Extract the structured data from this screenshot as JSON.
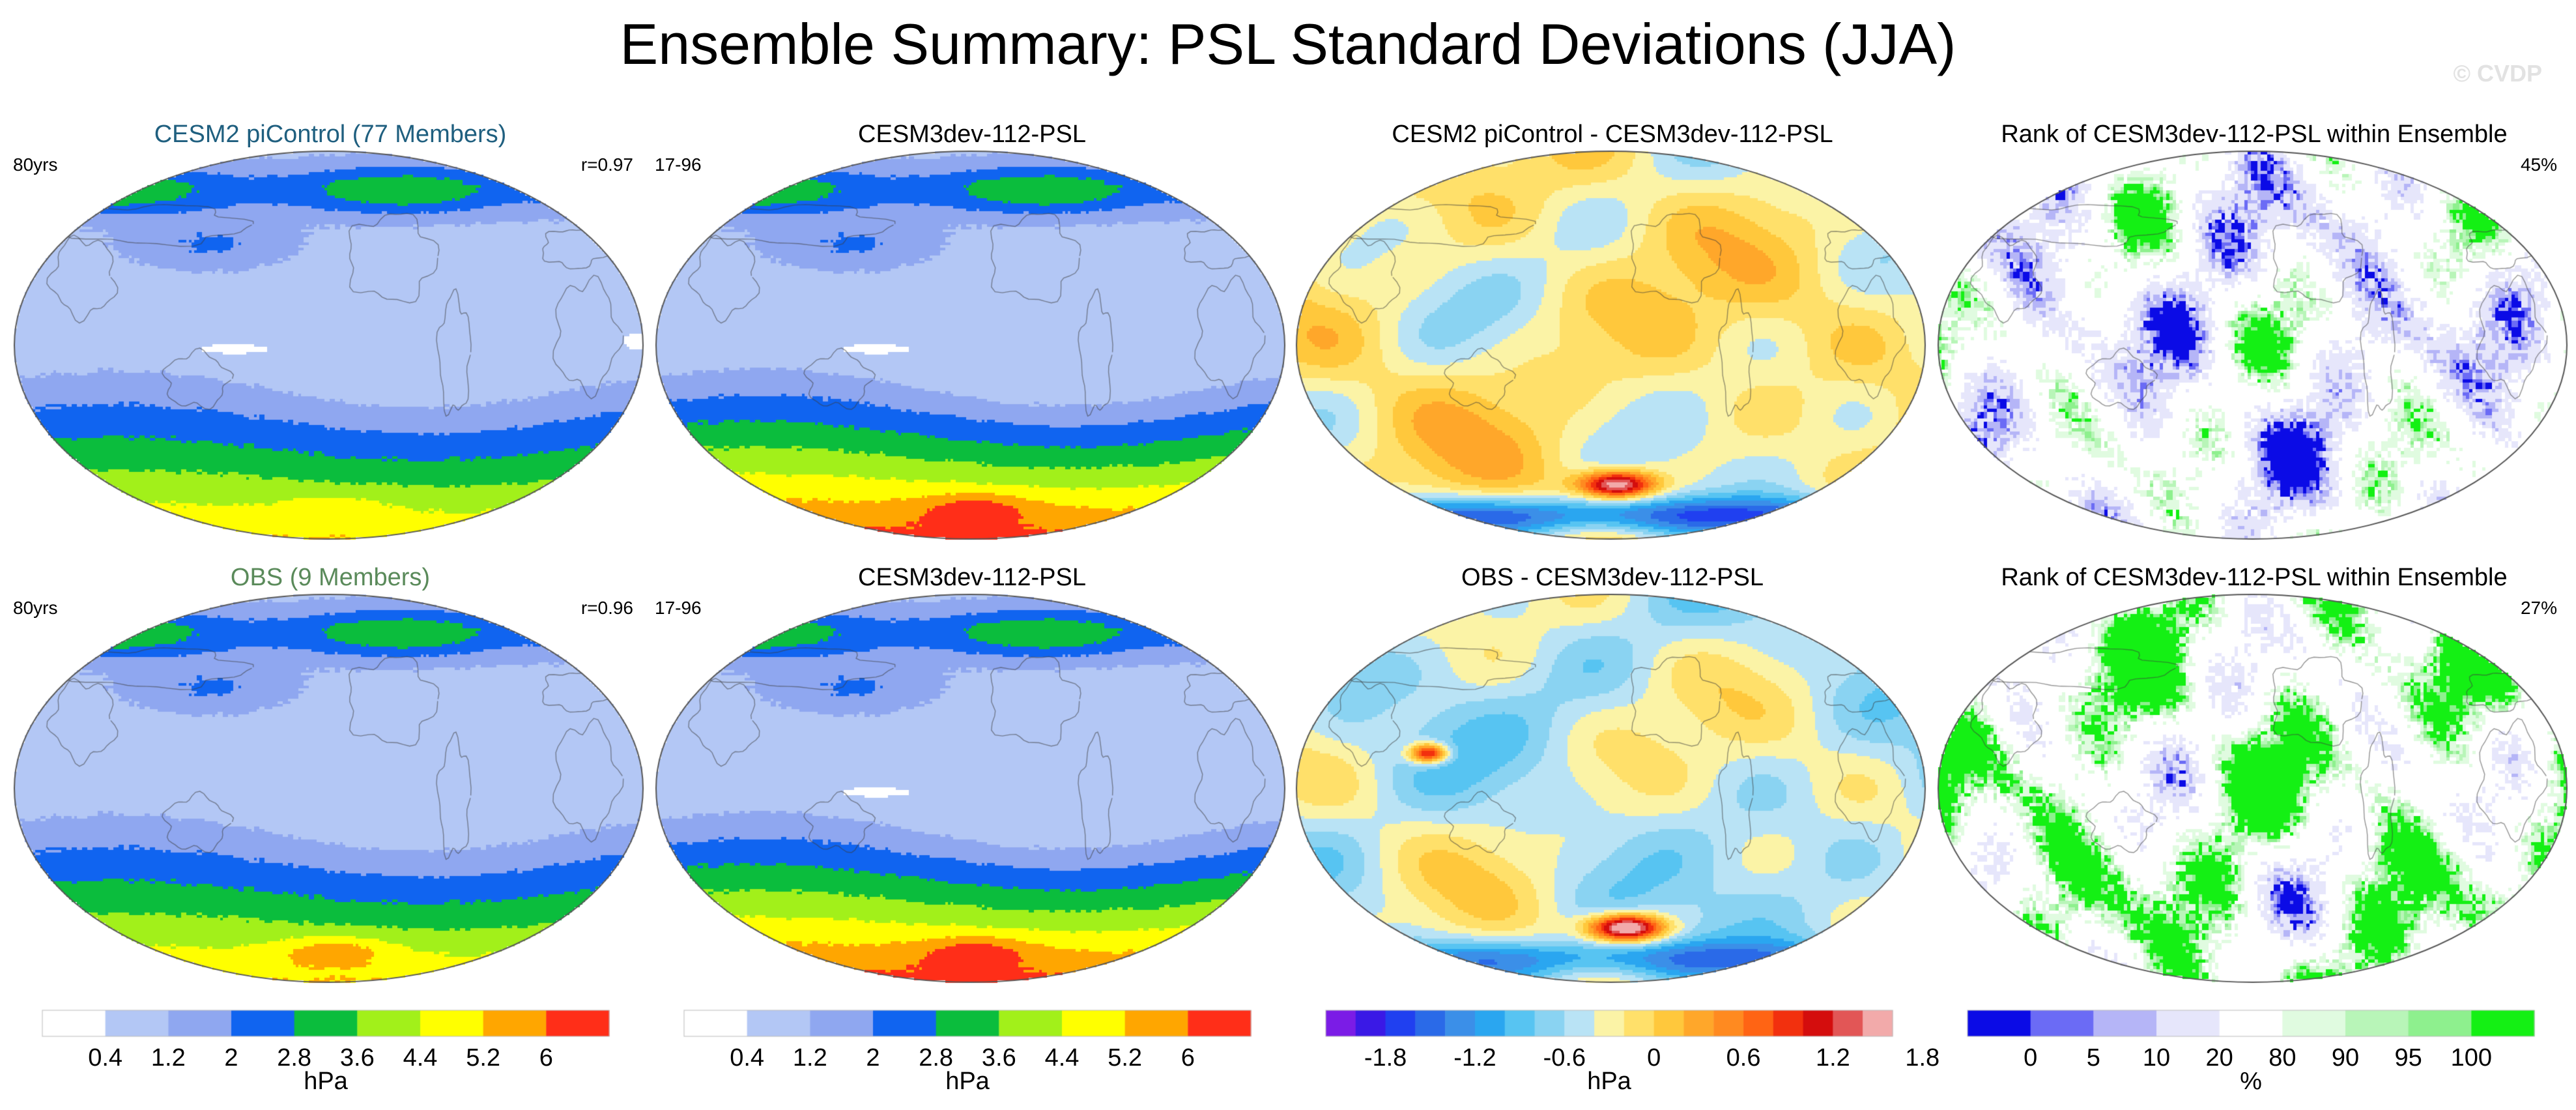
{
  "title": "Ensemble Summary: PSL Standard Deviations (JJA)",
  "watermark": "© CVDP",
  "panels": [
    {
      "title": "CESM2 piControl (77 Members)",
      "title_color": "#1f5f7f",
      "left_label": "80yrs",
      "right_label": "r=0.97",
      "palette": "std",
      "field": "cesm2_std"
    },
    {
      "title": "CESM3dev-112-PSL",
      "title_color": "#000000",
      "left_label": "17-96",
      "right_label": "",
      "palette": "std",
      "field": "model_std"
    },
    {
      "title": "CESM2 piControl - CESM3dev-112-PSL",
      "title_color": "#000000",
      "left_label": "",
      "right_label": "",
      "palette": "diff",
      "field": "diff1"
    },
    {
      "title": "Rank of CESM3dev-112-PSL within Ensemble",
      "title_color": "#000000",
      "left_label": "",
      "right_label": "45%",
      "palette": "rank",
      "field": "rank1"
    },
    {
      "title": "OBS (9 Members)",
      "title_color": "#5a8a5a",
      "left_label": "80yrs",
      "right_label": "r=0.96",
      "palette": "std",
      "field": "obs_std"
    },
    {
      "title": "CESM3dev-112-PSL",
      "title_color": "#000000",
      "left_label": "17-96",
      "right_label": "",
      "palette": "std",
      "field": "model_std"
    },
    {
      "title": "OBS - CESM3dev-112-PSL",
      "title_color": "#000000",
      "left_label": "",
      "right_label": "",
      "palette": "diff",
      "field": "diff2"
    },
    {
      "title": "Rank of CESM3dev-112-PSL within Ensemble",
      "title_color": "#000000",
      "left_label": "",
      "right_label": "27%",
      "palette": "rank",
      "field": "rank2"
    }
  ],
  "colorbars": [
    {
      "name": "std-1",
      "unit": "hPa",
      "ticks": [
        "0.4",
        "1.2",
        "2",
        "2.8",
        "3.6",
        "4.4",
        "5.2",
        "6"
      ],
      "colors": [
        "#ffffff",
        "#b3c7f5",
        "#8fa7f0",
        "#1064f0",
        "#0bbd3d",
        "#a2f01a",
        "#ffff00",
        "#ffa600",
        "#ff2e18"
      ]
    },
    {
      "name": "std-2",
      "unit": "hPa",
      "ticks": [
        "0.4",
        "1.2",
        "2",
        "2.8",
        "3.6",
        "4.4",
        "5.2",
        "6"
      ],
      "colors": [
        "#ffffff",
        "#b3c7f5",
        "#8fa7f0",
        "#1064f0",
        "#0bbd3d",
        "#a2f01a",
        "#ffff00",
        "#ffa600",
        "#ff2e18"
      ]
    },
    {
      "name": "diff",
      "unit": "hPa",
      "ticks": [
        "-1.8",
        "-1.2",
        "-0.6",
        "0",
        "0.6",
        "1.2",
        "1.8"
      ],
      "colors": [
        "#7b1ce6",
        "#3a19e6",
        "#2040f0",
        "#2a6ae8",
        "#3b8fe8",
        "#2aa6f0",
        "#57c4f2",
        "#8ad3f2",
        "#b9e3f5",
        "#fbf3a6",
        "#ffe06a",
        "#ffc83c",
        "#ffa72a",
        "#ff8a20",
        "#ff6414",
        "#f2300e",
        "#d40d0d",
        "#e25656",
        "#f2aaaa"
      ]
    },
    {
      "name": "rank",
      "unit": "%",
      "ticks": [
        "0",
        "5",
        "10",
        "20",
        "80",
        "90",
        "95",
        "100"
      ],
      "colors": [
        "#0b0be6",
        "#6b6bf5",
        "#b5b5f7",
        "#e6e6fb",
        "#ffffff",
        "#e0fbe0",
        "#b8f5b8",
        "#8ef08e",
        "#14f014"
      ]
    }
  ],
  "chart_data": {
    "type": "heatmap",
    "title": "Ensemble Summary: PSL Standard Deviations (JJA)",
    "variable": "PSL standard deviation",
    "season": "JJA",
    "units": "hPa",
    "std_levels": [
      0.4,
      1.2,
      2,
      2.8,
      3.6,
      4.4,
      5.2,
      6
    ],
    "diff_levels": [
      -1.8,
      -1.2,
      -0.6,
      0,
      0.6,
      1.2,
      1.8
    ],
    "rank_levels_percent": [
      0,
      5,
      10,
      20,
      80,
      90,
      95,
      100
    ],
    "pattern_correlations": {
      "CESM2 piControl": 0.97,
      "OBS": 0.96
    },
    "rank_area_percent": {
      "row1": 45,
      "row2": 27
    },
    "ensemble_members": {
      "CESM2 piControl": 77,
      "OBS": 9
    },
    "record_length": {
      "CESM2 piControl": "80yrs",
      "OBS": "80yrs",
      "CESM3dev-112-PSL": "17-96"
    }
  }
}
